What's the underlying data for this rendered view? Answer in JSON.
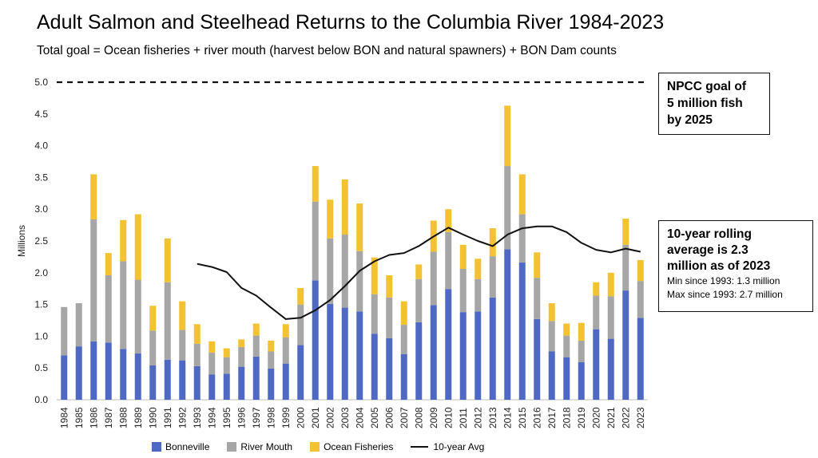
{
  "title": "Adult Salmon and Steelhead Returns to the Columbia River 1984-2023",
  "subtitle": "Total goal = Ocean fisheries + river mouth (harvest below BON and natural spawners) + BON Dam counts",
  "goal_box": {
    "line1": "NPCC goal of",
    "line2": "5 million fish",
    "line3": "by 2025"
  },
  "avg_box": {
    "line1": "10-year rolling",
    "line2": "average is 2.3",
    "line3": "million as of 2023",
    "min": "Min since 1993: 1.3 million",
    "max": "Max since 1993: 2.7 million"
  },
  "chart_data": {
    "type": "bar",
    "stacked": true,
    "title": "Adult Salmon and Steelhead Returns to the Columbia River 1984-2023",
    "ylabel": "Millions",
    "ylim": [
      0,
      5
    ],
    "ytick_labels": [
      "0.0",
      "0.5",
      "1.0",
      "1.5",
      "2.0",
      "2.5",
      "3.0",
      "3.5",
      "4.0",
      "4.5",
      "5.0"
    ],
    "goal_line": 5.0,
    "grid": false,
    "legend_position": "bottom",
    "categories": [
      "1984",
      "1985",
      "1986",
      "1987",
      "1988",
      "1989",
      "1990",
      "1991",
      "1992",
      "1993",
      "1994",
      "1995",
      "1996",
      "1997",
      "1998",
      "1999",
      "2000",
      "2001",
      "2002",
      "2003",
      "2004",
      "2005",
      "2006",
      "2007",
      "2008",
      "2009",
      "2010",
      "2011",
      "2012",
      "2013",
      "2014",
      "2015",
      "2016",
      "2017",
      "2018",
      "2019",
      "2020",
      "2021",
      "2022",
      "2023"
    ],
    "series": [
      {
        "name": "Bonneville",
        "color": "#4f68c4",
        "values": [
          0.7,
          0.84,
          0.92,
          0.9,
          0.8,
          0.73,
          0.54,
          0.63,
          0.62,
          0.53,
          0.4,
          0.41,
          0.52,
          0.68,
          0.49,
          0.57,
          0.86,
          1.88,
          1.51,
          1.45,
          1.39,
          1.04,
          0.97,
          0.72,
          1.22,
          1.49,
          1.74,
          1.38,
          1.39,
          1.61,
          2.37,
          2.16,
          1.27,
          0.76,
          0.67,
          0.59,
          1.11,
          0.96,
          1.72,
          1.29
        ]
      },
      {
        "name": "River Mouth",
        "color": "#a6a6a6",
        "values": [
          0.76,
          0.68,
          1.92,
          1.06,
          1.38,
          1.16,
          0.55,
          1.22,
          0.48,
          0.35,
          0.34,
          0.26,
          0.31,
          0.33,
          0.27,
          0.41,
          0.64,
          1.24,
          1.03,
          1.15,
          0.95,
          0.62,
          0.64,
          0.46,
          0.68,
          0.84,
          0.9,
          0.68,
          0.51,
          0.65,
          1.31,
          0.76,
          0.65,
          0.48,
          0.34,
          0.34,
          0.53,
          0.67,
          0.72,
          0.58
        ]
      },
      {
        "name": "Ocean Fisheries",
        "color": "#f2c232",
        "values": [
          0,
          0,
          0.71,
          0.35,
          0.65,
          1.03,
          0.39,
          0.69,
          0.45,
          0.31,
          0.18,
          0.14,
          0.12,
          0.19,
          0.17,
          0.21,
          0.26,
          0.56,
          0.61,
          0.87,
          0.75,
          0.58,
          0.35,
          0.37,
          0.23,
          0.49,
          0.36,
          0.38,
          0.32,
          0.44,
          0.95,
          0.63,
          0.4,
          0.28,
          0.19,
          0.28,
          0.21,
          0.37,
          0.41,
          0.33
        ]
      },
      {
        "name": "10-year Avg",
        "type": "line",
        "color": "#111111",
        "x": [
          "1993",
          "1994",
          "1995",
          "1996",
          "1997",
          "1998",
          "1999",
          "2000",
          "2001",
          "2002",
          "2003",
          "2004",
          "2005",
          "2006",
          "2007",
          "2008",
          "2009",
          "2010",
          "2011",
          "2012",
          "2013",
          "2014",
          "2015",
          "2016",
          "2017",
          "2018",
          "2019",
          "2020",
          "2021",
          "2022",
          "2023"
        ],
        "values": [
          2.14,
          2.09,
          2.01,
          1.76,
          1.64,
          1.45,
          1.27,
          1.29,
          1.41,
          1.57,
          1.79,
          2.03,
          2.18,
          2.28,
          2.31,
          2.42,
          2.57,
          2.71,
          2.6,
          2.5,
          2.42,
          2.6,
          2.7,
          2.73,
          2.73,
          2.64,
          2.47,
          2.36,
          2.32,
          2.38,
          2.33
        ]
      }
    ]
  }
}
